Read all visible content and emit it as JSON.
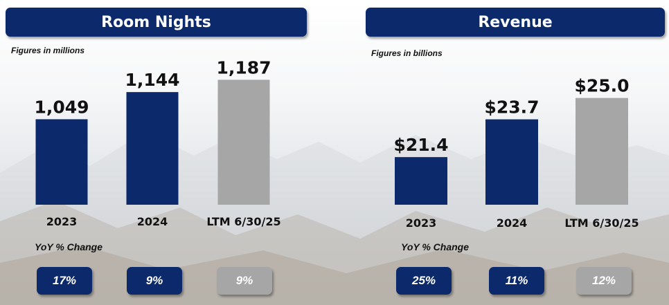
{
  "chart_data": [
    {
      "type": "bar",
      "title": "Room Nights",
      "subtitle": "Figures in millions",
      "categories": [
        "2023",
        "2024",
        "LTM 6/30/25"
      ],
      "values": [
        1049,
        1144,
        1187
      ],
      "value_labels": [
        "1,049",
        "1,144",
        "1,187"
      ],
      "bar_colors": [
        "#0c2a6b",
        "#0c2a6b",
        "#a6a6a6"
      ],
      "ylim": [
        750,
        1200
      ],
      "grid": false,
      "yoy_title": "YoY % Change",
      "yoy": [
        {
          "label": "17%",
          "color": "#0c2a6b"
        },
        {
          "label": "9%",
          "color": "#0c2a6b"
        },
        {
          "label": "9%",
          "color": "#a6a6a6"
        }
      ]
    },
    {
      "type": "bar",
      "title": "Revenue",
      "subtitle": "Figures in billions",
      "categories": [
        "2023",
        "2024",
        "LTM 6/30/25"
      ],
      "values": [
        21.4,
        23.7,
        25.0
      ],
      "value_labels": [
        "$21.4",
        "$23.7",
        "$25.0"
      ],
      "bar_colors": [
        "#0c2a6b",
        "#0c2a6b",
        "#a6a6a6"
      ],
      "ylim": [
        18.5,
        25.45
      ],
      "grid": false,
      "yoy_title": "YoY % Change",
      "yoy": [
        {
          "label": "25%",
          "color": "#0c2a6b"
        },
        {
          "label": "11%",
          "color": "#0c2a6b"
        },
        {
          "label": "12%",
          "color": "#a6a6a6"
        }
      ]
    }
  ]
}
